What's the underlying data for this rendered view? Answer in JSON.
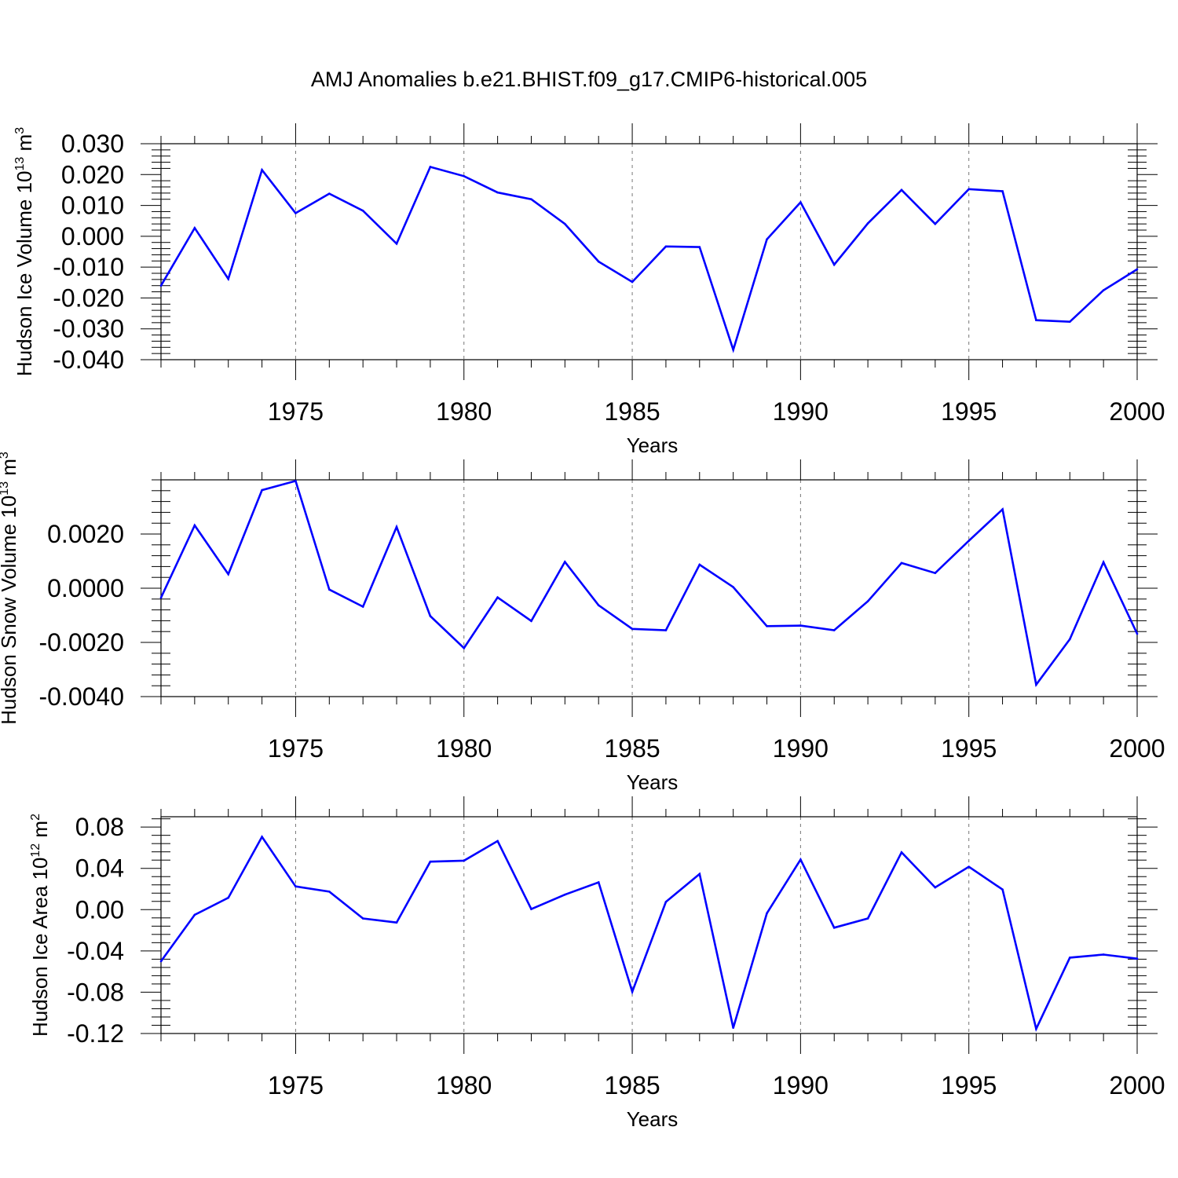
{
  "title": "AMJ Anomalies b.e21.BHIST.f09_g17.CMIP6-historical.005",
  "chart_data": [
    {
      "type": "line",
      "title": "AMJ Anomalies b.e21.BHIST.f09_g17.CMIP6-historical.005",
      "xlabel": "Years",
      "ylabel": {
        "text": "Hudson Ice Volume 10",
        "sup": "13",
        "unit": "m",
        "unit_sup": "3"
      },
      "xlim": [
        1971,
        2000
      ],
      "ylim": [
        -0.04,
        0.03
      ],
      "x_ticks": [
        1975,
        1980,
        1985,
        1990,
        1995,
        2000
      ],
      "y_ticks": [
        -0.04,
        -0.03,
        -0.02,
        -0.01,
        0.0,
        0.01,
        0.02,
        0.03
      ],
      "y_tick_labels": [
        "-0.040",
        "-0.030",
        "-0.020",
        "-0.010",
        "0.000",
        "0.010",
        "0.020",
        "0.030"
      ],
      "vertical_grid_dashed": true,
      "color": "#0000ff",
      "x": [
        1971,
        1972,
        1973,
        1974,
        1975,
        1976,
        1977,
        1978,
        1979,
        1980,
        1981,
        1982,
        1983,
        1984,
        1985,
        1986,
        1987,
        1988,
        1989,
        1990,
        1991,
        1992,
        1993,
        1994,
        1995,
        1996,
        1997,
        1998,
        1999,
        2000
      ],
      "y": [
        -0.016,
        0.0027,
        -0.0138,
        0.0215,
        0.0075,
        0.0138,
        0.0083,
        -0.0024,
        0.0225,
        0.0195,
        0.0142,
        0.012,
        0.004,
        -0.0082,
        -0.0148,
        -0.0033,
        -0.0035,
        -0.0368,
        -0.001,
        0.011,
        -0.0092,
        0.0042,
        0.015,
        0.004,
        0.0153,
        0.0146,
        -0.0272,
        -0.0277,
        -0.0175,
        -0.0107
      ]
    },
    {
      "type": "line",
      "xlabel": "Years",
      "ylabel": {
        "text": "Hudson Snow Volume 10",
        "sup": "13",
        "unit": "m",
        "unit_sup": "3"
      },
      "xlim": [
        1971,
        2000
      ],
      "ylim": [
        -0.004,
        0.004
      ],
      "x_ticks": [
        1975,
        1980,
        1985,
        1990,
        1995,
        2000
      ],
      "y_ticks": [
        -0.004,
        -0.002,
        0.0,
        0.002
      ],
      "y_tick_labels": [
        "-0.0040",
        "-0.0020",
        "0.0000",
        "0.0020"
      ],
      "vertical_grid_dashed": true,
      "color": "#0000ff",
      "x": [
        1971,
        1972,
        1973,
        1974,
        1975,
        1976,
        1977,
        1978,
        1979,
        1980,
        1981,
        1982,
        1983,
        1984,
        1985,
        1986,
        1987,
        1988,
        1989,
        1990,
        1991,
        1992,
        1993,
        1994,
        1995,
        1996,
        1997,
        1998,
        1999,
        2000
      ],
      "y": [
        -0.00035,
        0.00232,
        0.00052,
        0.00362,
        0.00396,
        -5e-05,
        -0.00068,
        0.00226,
        -0.00103,
        -0.00221,
        -0.00034,
        -0.00121,
        0.00097,
        -0.00063,
        -0.0015,
        -0.00155,
        0.00087,
        4e-05,
        -0.0014,
        -0.00138,
        -0.00155,
        -0.00048,
        0.00093,
        0.00056,
        0.00175,
        0.00291,
        -0.00356,
        -0.00188,
        0.00096,
        -0.00168
      ]
    },
    {
      "type": "line",
      "xlabel": "Years",
      "ylabel": {
        "text": "Hudson Ice Area 10",
        "sup": "12",
        "unit": "m",
        "unit_sup": "2"
      },
      "xlim": [
        1971,
        2000
      ],
      "ylim": [
        -0.12,
        0.09
      ],
      "x_ticks": [
        1975,
        1980,
        1985,
        1990,
        1995,
        2000
      ],
      "y_ticks": [
        -0.12,
        -0.08,
        -0.04,
        0.0,
        0.04,
        0.08
      ],
      "y_tick_labels": [
        "-0.12",
        "-0.08",
        "-0.04",
        "0.00",
        "0.04",
        "0.08"
      ],
      "vertical_grid_dashed": true,
      "color": "#0000ff",
      "x": [
        1971,
        1972,
        1973,
        1974,
        1975,
        1976,
        1977,
        1978,
        1979,
        1980,
        1981,
        1982,
        1983,
        1984,
        1985,
        1986,
        1987,
        1988,
        1989,
        1990,
        1991,
        1992,
        1993,
        1994,
        1995,
        1996,
        1997,
        1998,
        1999,
        2000
      ],
      "y": [
        -0.05,
        -0.005,
        0.0115,
        0.0705,
        0.0225,
        0.0175,
        -0.0085,
        -0.0125,
        0.0465,
        0.0475,
        0.0665,
        0.0005,
        0.0145,
        0.0265,
        -0.0795,
        0.0075,
        0.0345,
        -0.1145,
        -0.0035,
        0.0485,
        -0.0175,
        -0.0085,
        0.0555,
        0.0215,
        0.0415,
        0.0195,
        -0.1155,
        -0.0465,
        -0.0435,
        -0.0475
      ]
    }
  ]
}
